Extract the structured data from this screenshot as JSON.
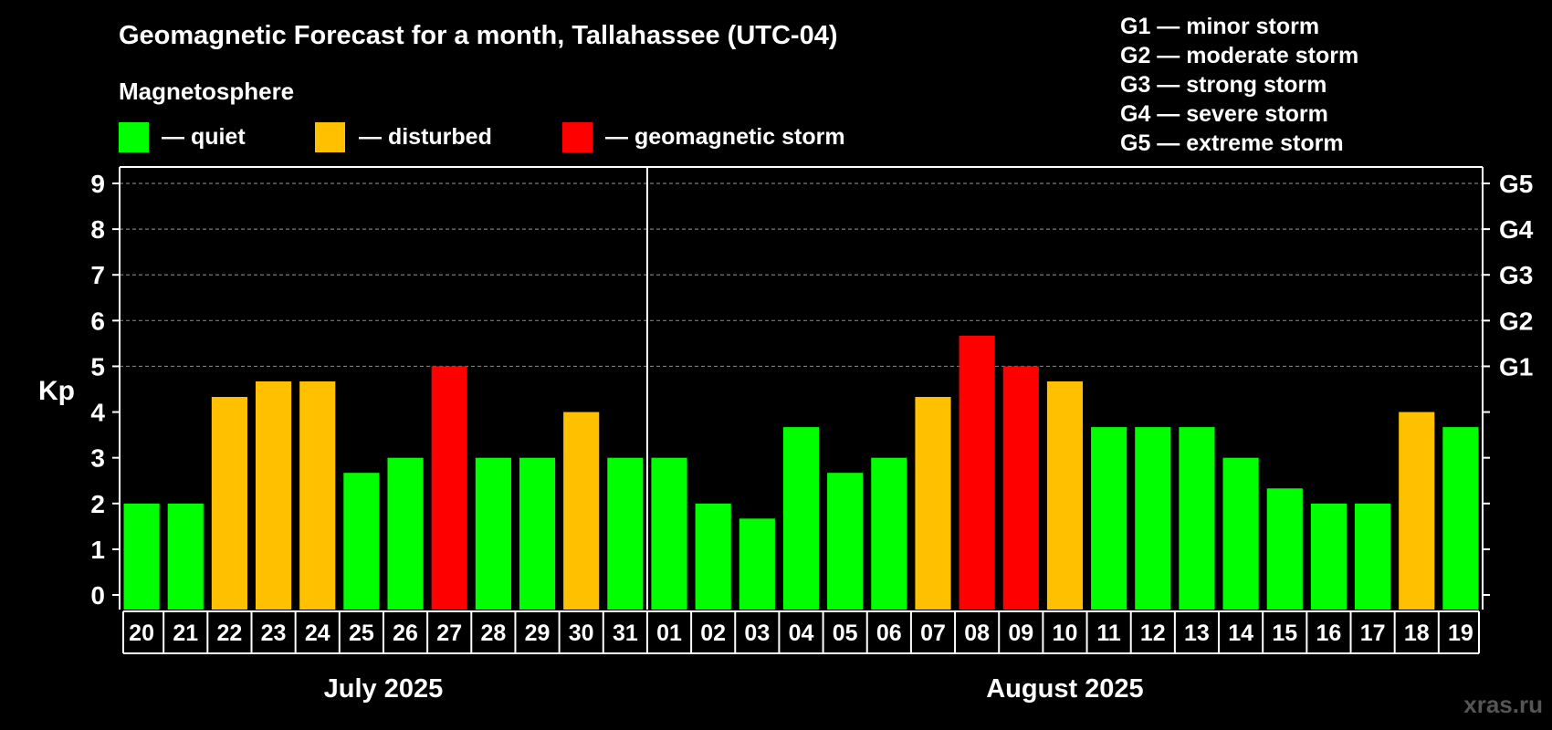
{
  "header": {
    "title": "Geomagnetic Forecast for a month, Tallahassee (UTC-04)",
    "subtitle": "Magnetosphere"
  },
  "legend": {
    "quiet": "— quiet",
    "disturbed": "— disturbed",
    "storm": "— geomagnetic storm"
  },
  "storm_scale": [
    "G1 — minor storm",
    "G2 — moderate storm",
    "G3 — strong storm",
    "G4 — severe storm",
    "G5 — extreme storm"
  ],
  "colors": {
    "quiet": "#00ff00",
    "disturbed": "#ffc000",
    "storm": "#ff0000",
    "background": "#000000",
    "foreground": "#ffffff"
  },
  "watermark": "xras.ru",
  "chart_data": {
    "type": "bar",
    "title": "Geomagnetic Forecast for a month, Tallahassee (UTC-04)",
    "ylabel": "Kp",
    "ylim": [
      0,
      9
    ],
    "yticks": [
      "0",
      "1",
      "2",
      "3",
      "4",
      "5",
      "6",
      "7",
      "8",
      "9"
    ],
    "y2ticks": [
      {
        "value": 5,
        "label": "G1"
      },
      {
        "value": 6,
        "label": "G2"
      },
      {
        "value": 7,
        "label": "G3"
      },
      {
        "value": 8,
        "label": "G4"
      },
      {
        "value": 9,
        "label": "G5"
      }
    ],
    "grid": "dashed horizontal at 5–9",
    "months": [
      {
        "label": "July 2025",
        "first_index": 0,
        "last_index": 11
      },
      {
        "label": "August 2025",
        "first_index": 12,
        "last_index": 30
      }
    ],
    "categories": [
      "20",
      "21",
      "22",
      "23",
      "24",
      "25",
      "26",
      "27",
      "28",
      "29",
      "30",
      "31",
      "01",
      "02",
      "03",
      "04",
      "05",
      "06",
      "07",
      "08",
      "09",
      "10",
      "11",
      "12",
      "13",
      "14",
      "15",
      "16",
      "17",
      "18",
      "19"
    ],
    "values": [
      2,
      2,
      4.33,
      4.67,
      4.67,
      2.67,
      3,
      5,
      3,
      3,
      4,
      3,
      3,
      2,
      1.67,
      3.67,
      2.67,
      3,
      4.33,
      5.67,
      5,
      4.67,
      3.67,
      3.67,
      3.67,
      3,
      2.33,
      2,
      2,
      4,
      3.67
    ],
    "levels": [
      "quiet",
      "quiet",
      "disturbed",
      "disturbed",
      "disturbed",
      "quiet",
      "quiet",
      "storm",
      "quiet",
      "quiet",
      "disturbed",
      "quiet",
      "quiet",
      "quiet",
      "quiet",
      "quiet",
      "quiet",
      "quiet",
      "disturbed",
      "storm",
      "storm",
      "disturbed",
      "quiet",
      "quiet",
      "quiet",
      "quiet",
      "quiet",
      "quiet",
      "quiet",
      "disturbed",
      "quiet"
    ]
  }
}
